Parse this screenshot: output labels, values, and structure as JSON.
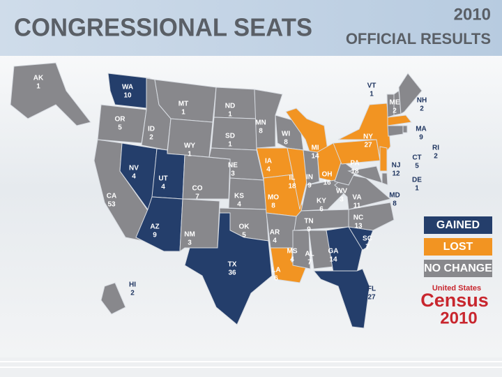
{
  "header": {
    "title": "CONGRESSIONAL SEATS",
    "year": "2010",
    "subtitle": "OFFICIAL RESULTS"
  },
  "legend": [
    {
      "label": "GAINED",
      "color": "#243e6b"
    },
    {
      "label": "LOST",
      "color": "#f29422"
    },
    {
      "label": "NO CHANGE",
      "color": "#88888c"
    }
  ],
  "states": [
    {
      "abbr": "AK",
      "seats": 1,
      "color": "#88888c"
    },
    {
      "abbr": "WA",
      "seats": 10,
      "color": "#243e6b"
    },
    {
      "abbr": "OR",
      "seats": 5,
      "color": "#88888c"
    },
    {
      "abbr": "CA",
      "seats": 53,
      "color": "#88888c"
    },
    {
      "abbr": "NV",
      "seats": 4,
      "color": "#243e6b"
    },
    {
      "abbr": "ID",
      "seats": 2,
      "color": "#88888c"
    },
    {
      "abbr": "MT",
      "seats": 1,
      "color": "#88888c"
    },
    {
      "abbr": "WY",
      "seats": 1,
      "color": "#88888c"
    },
    {
      "abbr": "UT",
      "seats": 4,
      "color": "#243e6b"
    },
    {
      "abbr": "AZ",
      "seats": 9,
      "color": "#243e6b"
    },
    {
      "abbr": "CO",
      "seats": 7,
      "color": "#88888c"
    },
    {
      "abbr": "NM",
      "seats": 3,
      "color": "#88888c"
    },
    {
      "abbr": "ND",
      "seats": 1,
      "color": "#88888c"
    },
    {
      "abbr": "SD",
      "seats": 1,
      "color": "#88888c"
    },
    {
      "abbr": "NE",
      "seats": 3,
      "color": "#88888c"
    },
    {
      "abbr": "KS",
      "seats": 4,
      "color": "#88888c"
    },
    {
      "abbr": "OK",
      "seats": 5,
      "color": "#88888c"
    },
    {
      "abbr": "TX",
      "seats": 36,
      "color": "#243e6b"
    },
    {
      "abbr": "MN",
      "seats": 8,
      "color": "#88888c"
    },
    {
      "abbr": "IA",
      "seats": 4,
      "color": "#f29422"
    },
    {
      "abbr": "MO",
      "seats": 8,
      "color": "#f29422"
    },
    {
      "abbr": "AR",
      "seats": 4,
      "color": "#88888c"
    },
    {
      "abbr": "LA",
      "seats": 6,
      "color": "#f29422"
    },
    {
      "abbr": "WI",
      "seats": 8,
      "color": "#88888c"
    },
    {
      "abbr": "IL",
      "seats": 18,
      "color": "#f29422"
    },
    {
      "abbr": "MI",
      "seats": 14,
      "color": "#f29422"
    },
    {
      "abbr": "IN",
      "seats": 9,
      "color": "#88888c"
    },
    {
      "abbr": "OH",
      "seats": 16,
      "color": "#f29422"
    },
    {
      "abbr": "KY",
      "seats": 6,
      "color": "#88888c"
    },
    {
      "abbr": "TN",
      "seats": 9,
      "color": "#88888c"
    },
    {
      "abbr": "MS",
      "seats": 4,
      "color": "#88888c"
    },
    {
      "abbr": "AL",
      "seats": 7,
      "color": "#88888c"
    },
    {
      "abbr": "GA",
      "seats": 14,
      "color": "#243e6b"
    },
    {
      "abbr": "FL",
      "seats": 27,
      "color": "#243e6b"
    },
    {
      "abbr": "SC",
      "seats": 7,
      "color": "#243e6b"
    },
    {
      "abbr": "NC",
      "seats": 13,
      "color": "#88888c"
    },
    {
      "abbr": "VA",
      "seats": 11,
      "color": "#88888c"
    },
    {
      "abbr": "WV",
      "seats": 3,
      "color": "#88888c"
    },
    {
      "abbr": "PA",
      "seats": 18,
      "color": "#f29422"
    },
    {
      "abbr": "NY",
      "seats": 27,
      "color": "#f29422"
    },
    {
      "abbr": "VT",
      "seats": 1,
      "color": "#88888c"
    },
    {
      "abbr": "NH",
      "seats": 2,
      "color": "#88888c"
    },
    {
      "abbr": "ME",
      "seats": 2,
      "color": "#88888c"
    },
    {
      "abbr": "MA",
      "seats": 9,
      "color": "#f29422"
    },
    {
      "abbr": "RI",
      "seats": 2,
      "color": "#88888c"
    },
    {
      "abbr": "CT",
      "seats": 5,
      "color": "#88888c"
    },
    {
      "abbr": "NJ",
      "seats": 12,
      "color": "#f29422"
    },
    {
      "abbr": "DE",
      "seats": 1,
      "color": "#88888c"
    },
    {
      "abbr": "MD",
      "seats": 8,
      "color": "#88888c"
    },
    {
      "abbr": "HI",
      "seats": 2,
      "color": "#88888c"
    }
  ],
  "logo": {
    "line1": "United States",
    "line2": "Census",
    "line3": "2010"
  }
}
